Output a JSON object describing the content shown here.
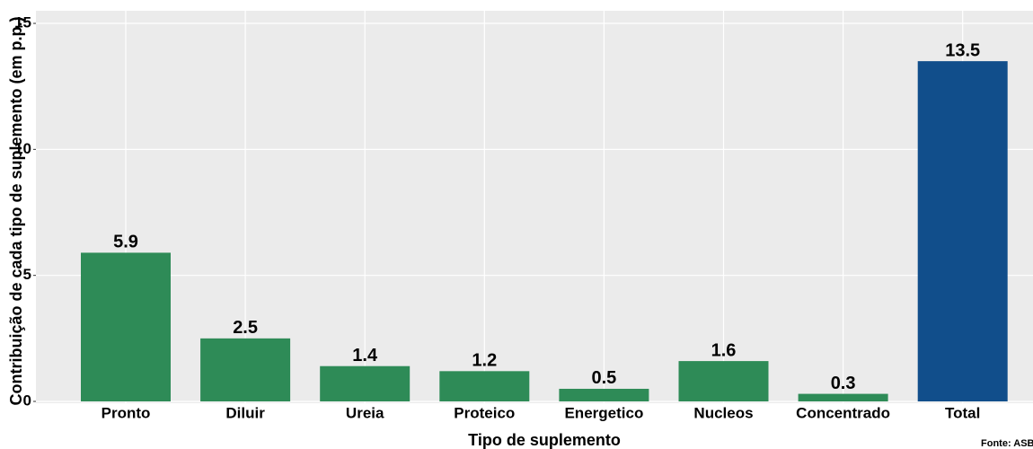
{
  "chart_data": {
    "type": "bar",
    "x_label": "Tipo de suplemento",
    "y_label": "Contribuição de cada tipo de suplemento (em p.p.)",
    "source": "Fonte: ASBRAM",
    "categories": [
      "Pronto",
      "Diluir",
      "Ureia",
      "Proteico",
      "Energetico",
      "Nucleos",
      "Concentrado",
      "Total"
    ],
    "values": [
      5.9,
      2.5,
      1.4,
      1.2,
      0.5,
      1.6,
      0.3,
      13.5
    ],
    "colors": [
      "#2e8b57",
      "#2e8b57",
      "#2e8b57",
      "#2e8b57",
      "#2e8b57",
      "#2e8b57",
      "#2e8b57",
      "#114e8b"
    ],
    "ylim": [
      0,
      15.5
    ],
    "yticks": [
      0,
      5,
      10,
      15
    ],
    "grid": true
  }
}
